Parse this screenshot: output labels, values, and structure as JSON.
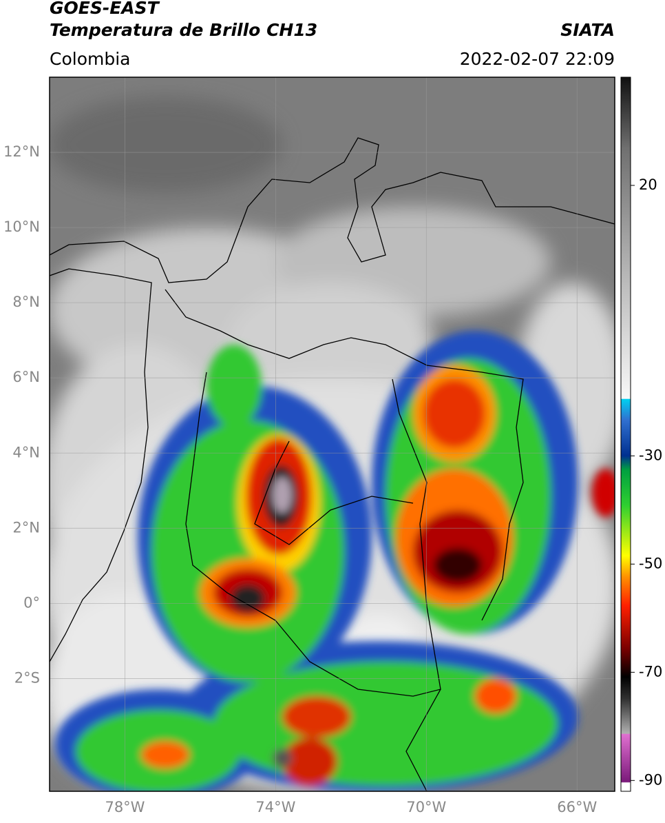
{
  "header": {
    "title": "GOES-EAST",
    "subtitle": "Temperatura de Brillo CH13",
    "source": "SIATA",
    "region": "Colombia",
    "datetime": "2022-02-07 22:09"
  },
  "map": {
    "lonlim": [
      -80,
      -65
    ],
    "latlim": [
      -5,
      14
    ],
    "lonticks": [
      {
        "value": -78,
        "label": "78°W"
      },
      {
        "value": -74,
        "label": "74°W"
      },
      {
        "value": -70,
        "label": "70°W"
      },
      {
        "value": -66,
        "label": "66°W"
      }
    ],
    "latticks": [
      {
        "value": 12,
        "label": "12°N"
      },
      {
        "value": 10,
        "label": "10°N"
      },
      {
        "value": 8,
        "label": "8°N"
      },
      {
        "value": 6,
        "label": "6°N"
      },
      {
        "value": 4,
        "label": "4°N"
      },
      {
        "value": 2,
        "label": "2°N"
      },
      {
        "value": 0,
        "label": "0°"
      },
      {
        "value": -2,
        "label": "2°S"
      }
    ],
    "grid": true
  },
  "colorbar": {
    "lim": [
      -92,
      40
    ],
    "ticks": [
      20,
      -30,
      -50,
      -70,
      -90
    ]
  }
}
